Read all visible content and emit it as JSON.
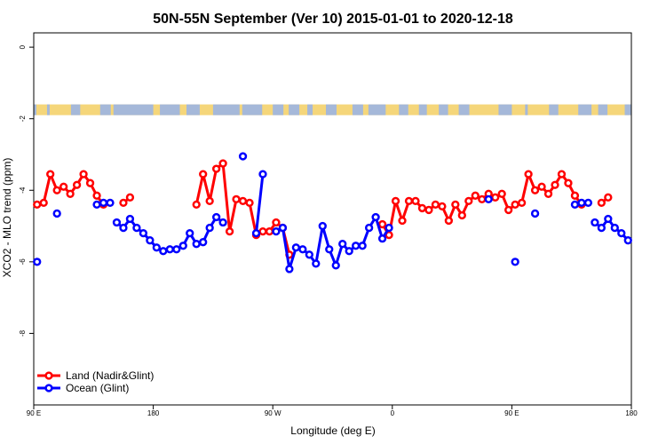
{
  "chart_data": {
    "type": "line",
    "title": "50N-55N September (Ver 10)   2015-01-01 to 2020-12-18",
    "xlabel": "Longitude (deg E)",
    "ylabel": "XCO2 - MLO trend (ppm)",
    "xlim": [
      90,
      540
    ],
    "ylim": [
      -10,
      0.4
    ],
    "x_ticks": [
      {
        "value": 90,
        "label": "90 E"
      },
      {
        "value": 180,
        "label": "180"
      },
      {
        "value": 270,
        "label": "90 W"
      },
      {
        "value": 360,
        "label": "0"
      },
      {
        "value": 450,
        "label": "90 E"
      },
      {
        "value": 540,
        "label": "180"
      }
    ],
    "y_ticks": [
      {
        "value": 0,
        "label": "0"
      },
      {
        "value": -2,
        "label": "-2"
      },
      {
        "value": -4,
        "label": "-4"
      },
      {
        "value": -6,
        "label": "-6"
      },
      {
        "value": -8,
        "label": "-8"
      }
    ],
    "grid": false,
    "legend_position": "bottom-left",
    "land_mask_band": {
      "y_top": -1.6,
      "y_bottom": -1.9,
      "land_color": "#f5d67a",
      "ocean_color": "#a5b8d9"
    },
    "series": [
      {
        "name": "Land (Nadir&Glint)",
        "color": "#ff0000",
        "segments": [
          [
            [
              92.5,
              -4.4
            ],
            [
              97.5,
              -4.35
            ],
            [
              102.5,
              -3.55
            ],
            [
              107.5,
              -4.0
            ],
            [
              112.5,
              -3.9
            ],
            [
              117.5,
              -4.1
            ],
            [
              122.5,
              -3.85
            ],
            [
              127.5,
              -3.55
            ],
            [
              132.5,
              -3.8
            ],
            [
              137.5,
              -4.15
            ],
            [
              142.5,
              -4.4
            ]
          ],
          [
            [
              157.5,
              -4.35
            ],
            [
              162.5,
              -4.2
            ]
          ],
          [
            [
              212.5,
              -4.4
            ],
            [
              217.5,
              -3.55
            ],
            [
              222.5,
              -4.3
            ],
            [
              227.5,
              -3.4
            ],
            [
              232.5,
              -3.25
            ],
            [
              237.5,
              -5.15
            ],
            [
              242.5,
              -4.25
            ],
            [
              247.5,
              -4.3
            ],
            [
              252.5,
              -4.35
            ],
            [
              257.5,
              -5.25
            ],
            [
              262.5,
              -5.15
            ],
            [
              267.5,
              -5.15
            ],
            [
              272.5,
              -4.9
            ],
            [
              277.5,
              -5.05
            ],
            [
              282.5,
              -5.8
            ]
          ],
          [
            [
              352.5,
              -4.95
            ],
            [
              357.5,
              -5.25
            ],
            [
              362.5,
              -4.3
            ],
            [
              367.5,
              -4.85
            ],
            [
              372.5,
              -4.3
            ],
            [
              377.5,
              -4.3
            ],
            [
              382.5,
              -4.5
            ],
            [
              387.5,
              -4.55
            ],
            [
              392.5,
              -4.4
            ],
            [
              397.5,
              -4.45
            ],
            [
              402.5,
              -4.85
            ],
            [
              407.5,
              -4.4
            ],
            [
              412.5,
              -4.7
            ],
            [
              417.5,
              -4.3
            ],
            [
              422.5,
              -4.15
            ],
            [
              427.5,
              -4.25
            ],
            [
              432.5,
              -4.1
            ],
            [
              437.5,
              -4.2
            ],
            [
              442.5,
              -4.1
            ],
            [
              447.5,
              -4.55
            ],
            [
              452.5,
              -4.4
            ],
            [
              457.5,
              -4.35
            ],
            [
              462.5,
              -3.55
            ],
            [
              467.5,
              -4.0
            ],
            [
              472.5,
              -3.9
            ],
            [
              477.5,
              -4.1
            ],
            [
              482.5,
              -3.85
            ],
            [
              487.5,
              -3.55
            ],
            [
              492.5,
              -3.8
            ],
            [
              497.5,
              -4.15
            ],
            [
              502.5,
              -4.4
            ]
          ],
          [
            [
              517.5,
              -4.35
            ],
            [
              522.5,
              -4.2
            ]
          ]
        ]
      },
      {
        "name": "Ocean (Glint)",
        "color": "#0000ff",
        "segments": [
          [
            [
              92.5,
              -6.0
            ]
          ],
          [
            [
              107.5,
              -4.65
            ]
          ],
          [
            [
              137.5,
              -4.4
            ],
            [
              142.5,
              -4.35
            ],
            [
              147.5,
              -4.35
            ]
          ],
          [
            [
              152.5,
              -4.9
            ],
            [
              157.5,
              -5.05
            ],
            [
              162.5,
              -4.8
            ],
            [
              167.5,
              -5.05
            ],
            [
              172.5,
              -5.2
            ],
            [
              177.5,
              -5.4
            ],
            [
              182.5,
              -5.6
            ],
            [
              187.5,
              -5.7
            ],
            [
              192.5,
              -5.65
            ],
            [
              197.5,
              -5.65
            ],
            [
              202.5,
              -5.55
            ],
            [
              207.5,
              -5.2
            ],
            [
              212.5,
              -5.5
            ],
            [
              217.5,
              -5.45
            ],
            [
              222.5,
              -5.05
            ],
            [
              227.5,
              -4.75
            ],
            [
              232.5,
              -4.9
            ]
          ],
          [
            [
              247.5,
              -3.05
            ]
          ],
          [
            [
              257.5,
              -5.2
            ],
            [
              262.5,
              -3.55
            ]
          ],
          [
            [
              272.5,
              -5.15
            ],
            [
              277.5,
              -5.05
            ],
            [
              282.5,
              -6.2
            ],
            [
              287.5,
              -5.6
            ],
            [
              292.5,
              -5.65
            ],
            [
              297.5,
              -5.8
            ],
            [
              302.5,
              -6.05
            ],
            [
              307.5,
              -5.0
            ],
            [
              312.5,
              -5.65
            ],
            [
              317.5,
              -6.1
            ],
            [
              322.5,
              -5.5
            ],
            [
              327.5,
              -5.7
            ],
            [
              332.5,
              -5.55
            ],
            [
              337.5,
              -5.55
            ],
            [
              342.5,
              -5.05
            ],
            [
              347.5,
              -4.75
            ],
            [
              352.5,
              -5.35
            ],
            [
              357.5,
              -5.05
            ]
          ],
          [
            [
              432.5,
              -4.25
            ]
          ],
          [
            [
              452.5,
              -6.0
            ]
          ],
          [
            [
              467.5,
              -4.65
            ]
          ],
          [
            [
              497.5,
              -4.4
            ],
            [
              502.5,
              -4.35
            ],
            [
              507.5,
              -4.35
            ]
          ],
          [
            [
              512.5,
              -4.9
            ],
            [
              517.5,
              -5.05
            ],
            [
              522.5,
              -4.8
            ],
            [
              527.5,
              -5.05
            ],
            [
              532.5,
              -5.2
            ],
            [
              537.5,
              -5.4
            ]
          ]
        ]
      }
    ]
  }
}
